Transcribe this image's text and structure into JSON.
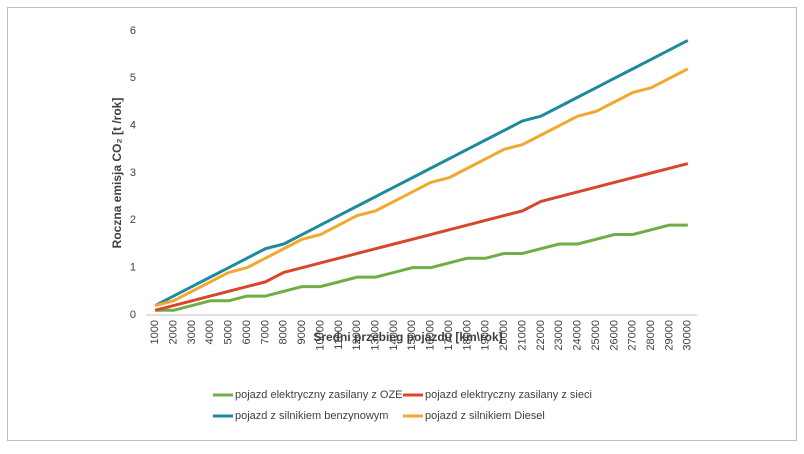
{
  "chart_data": {
    "type": "line",
    "xlabel": "Średni przebieg pojazdu [km\\rok]",
    "ylabel": "Roczna emisja CO₂  [t /rok]",
    "categories": [
      "1000",
      "2000",
      "3000",
      "4000",
      "5000",
      "6000",
      "7000",
      "8000",
      "9000",
      "10000",
      "11000",
      "12000",
      "13000",
      "14000",
      "15000",
      "16000",
      "17000",
      "18000",
      "19000",
      "20000",
      "21000",
      "22000",
      "23000",
      "24000",
      "25000",
      "26000",
      "27000",
      "28000",
      "29000",
      "30000"
    ],
    "series": [
      {
        "name": "pojazd elektryczny zasilany z OZE",
        "color": "#70ad47",
        "values": [
          0.1,
          0.1,
          0.2,
          0.3,
          0.3,
          0.4,
          0.4,
          0.5,
          0.6,
          0.6,
          0.7,
          0.8,
          0.8,
          0.9,
          1.0,
          1.0,
          1.1,
          1.2,
          1.2,
          1.3,
          1.3,
          1.4,
          1.5,
          1.5,
          1.6,
          1.7,
          1.7,
          1.8,
          1.9,
          1.9
        ]
      },
      {
        "name": "pojazd elektryczny zasilany z sieci",
        "color": "#d9472b",
        "values": [
          0.1,
          0.2,
          0.3,
          0.4,
          0.5,
          0.6,
          0.7,
          0.9,
          1.0,
          1.1,
          1.2,
          1.3,
          1.4,
          1.5,
          1.6,
          1.7,
          1.8,
          1.9,
          2.0,
          2.1,
          2.2,
          2.4,
          2.5,
          2.6,
          2.7,
          2.8,
          2.9,
          3.0,
          3.1,
          3.2
        ]
      },
      {
        "name": "pojazd z silnikiem benzynowym",
        "color": "#1f8a9e",
        "values": [
          0.2,
          0.4,
          0.6,
          0.8,
          1.0,
          1.2,
          1.4,
          1.5,
          1.7,
          1.9,
          2.1,
          2.3,
          2.5,
          2.7,
          2.9,
          3.1,
          3.3,
          3.5,
          3.7,
          3.9,
          4.1,
          4.2,
          4.4,
          4.6,
          4.8,
          5.0,
          5.2,
          5.4,
          5.6,
          5.8
        ]
      },
      {
        "name": "pojazd z silnikiem Diesel",
        "color": "#f0a830",
        "values": [
          0.2,
          0.3,
          0.5,
          0.7,
          0.9,
          1.0,
          1.2,
          1.4,
          1.6,
          1.7,
          1.9,
          2.1,
          2.2,
          2.4,
          2.6,
          2.8,
          2.9,
          3.1,
          3.3,
          3.5,
          3.6,
          3.8,
          4.0,
          4.2,
          4.3,
          4.5,
          4.7,
          4.8,
          5.0,
          5.2
        ]
      }
    ],
    "ylim": [
      0,
      6
    ],
    "yticks": [
      0,
      1,
      2,
      3,
      4,
      5,
      6
    ],
    "grid": false
  }
}
